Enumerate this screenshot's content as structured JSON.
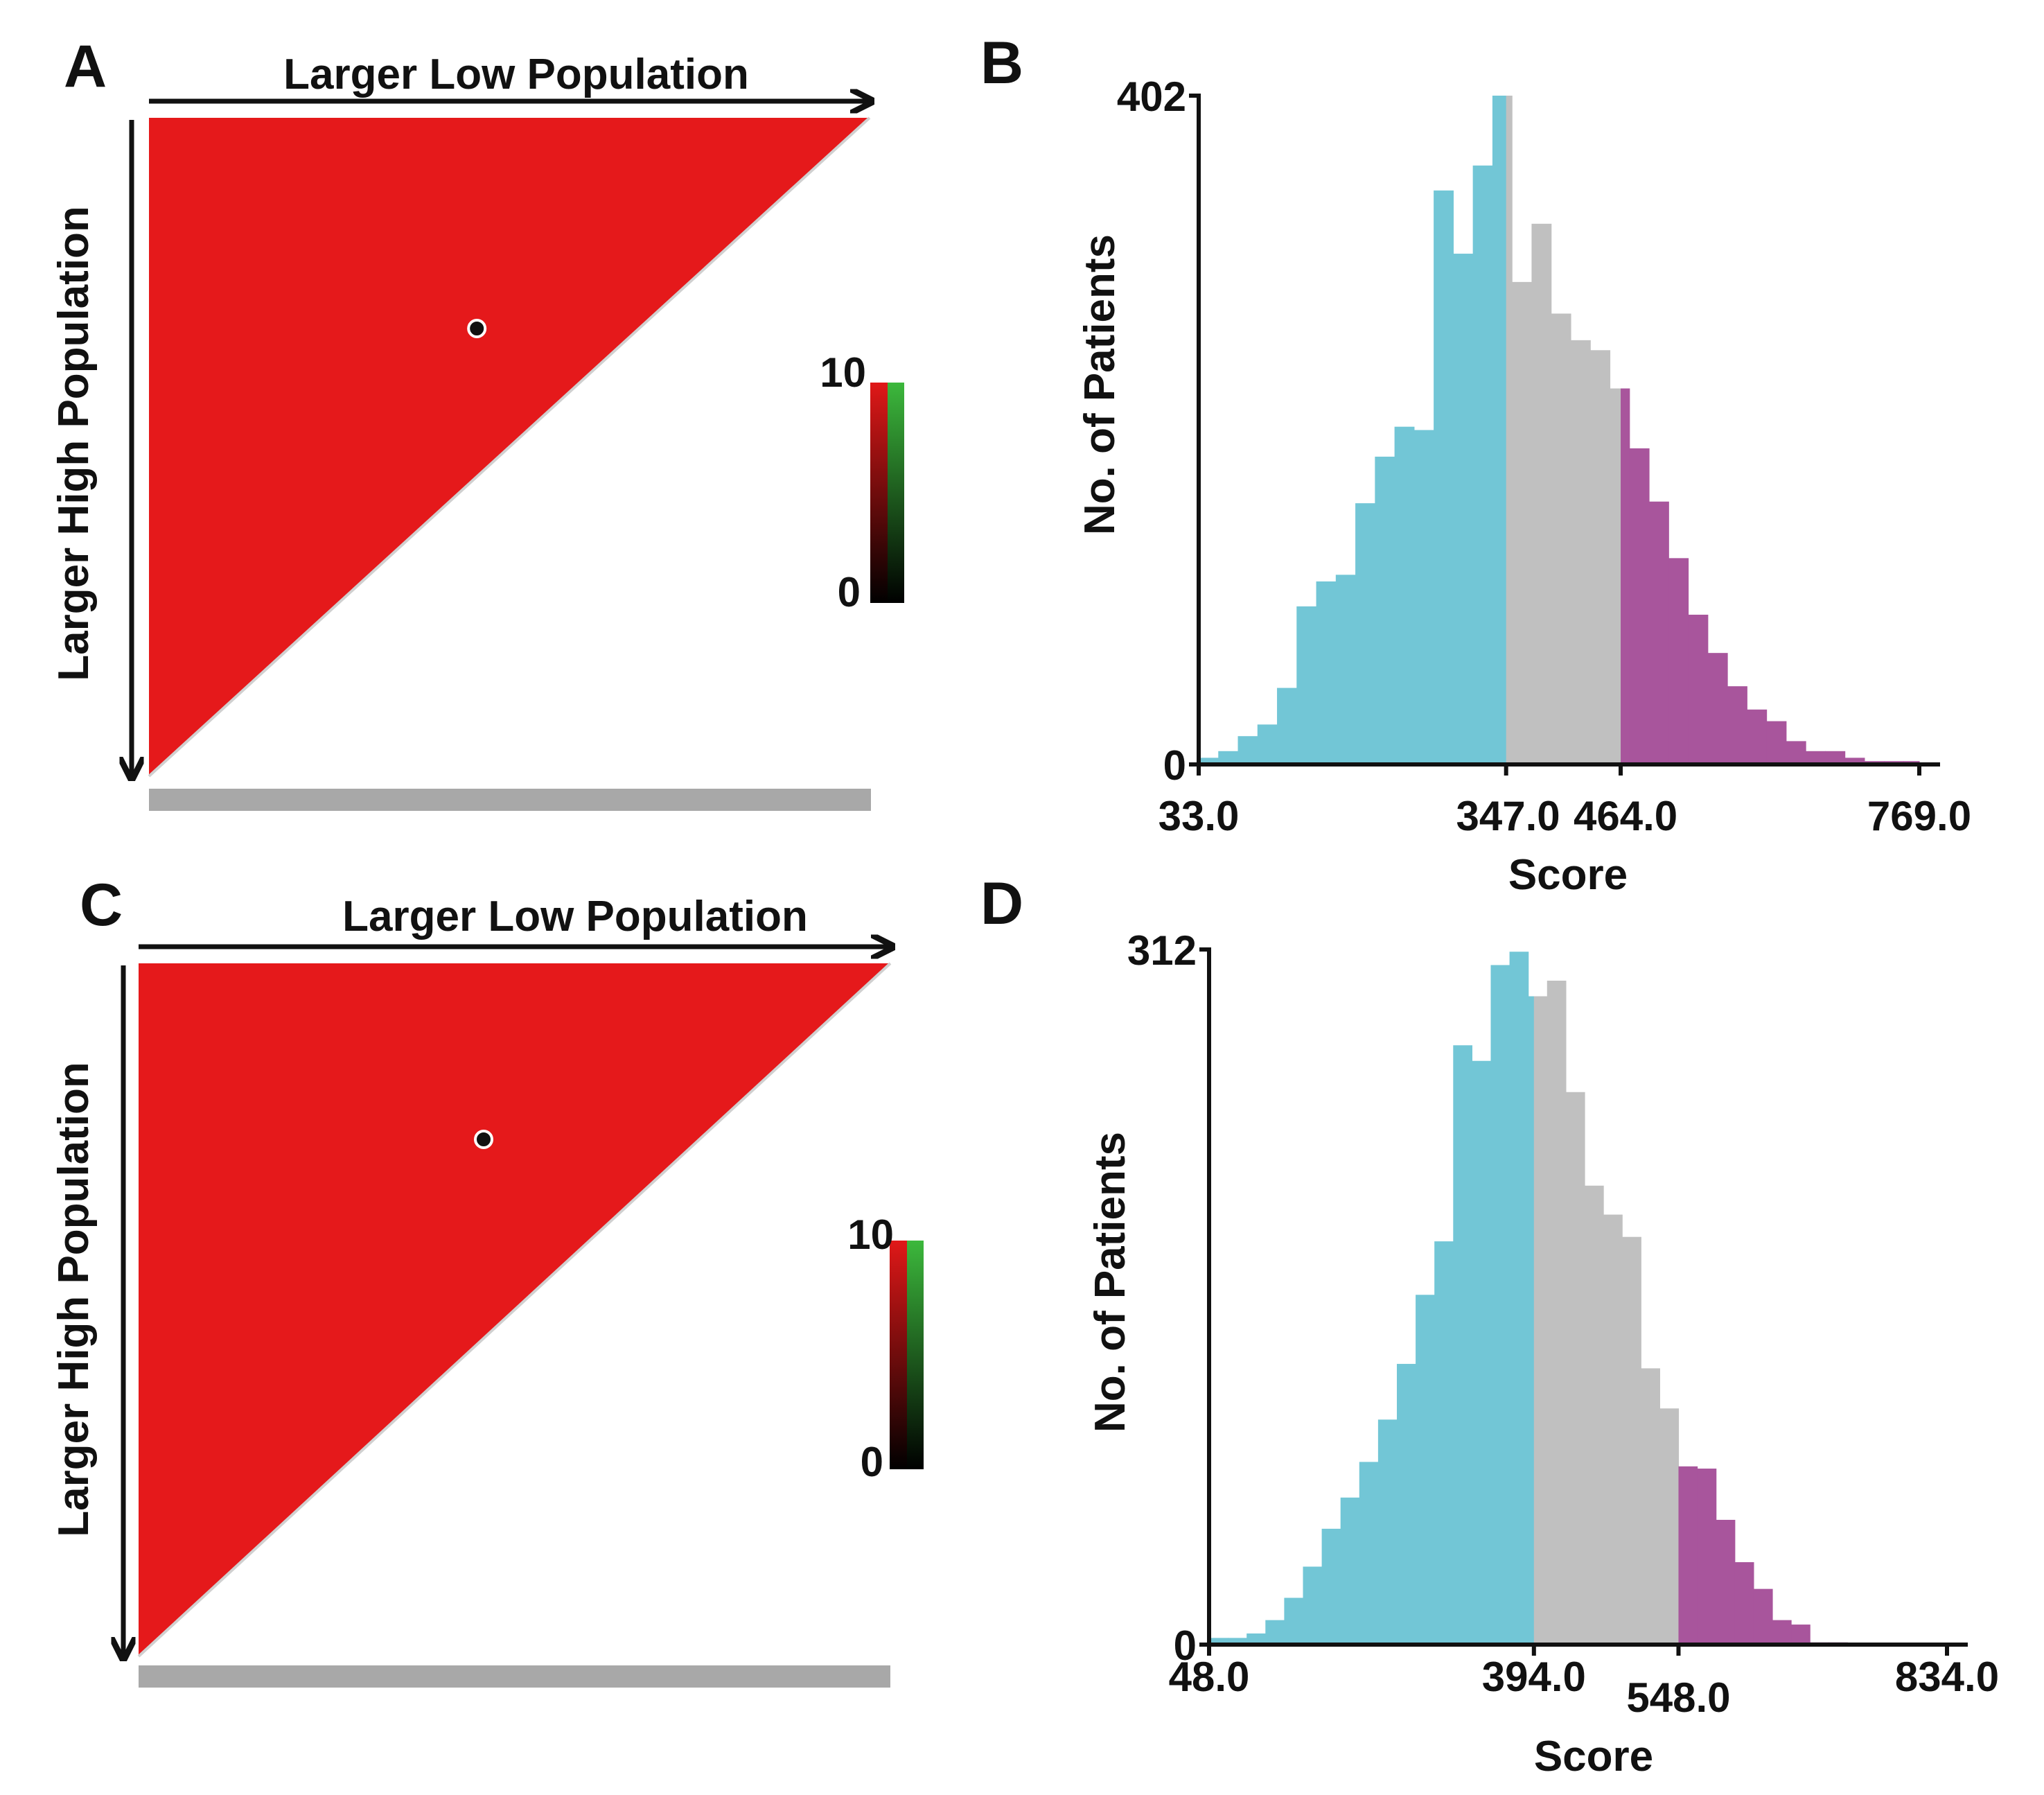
{
  "colors": {
    "low": "#72c6d6",
    "medium": "#c0c0c0",
    "high": "#a8559c",
    "triangle": "#e5191b",
    "cutoff_bar": "#a8a8a8",
    "axis": "#111111"
  },
  "chart_data": [
    {
      "panel": "A",
      "type": "heatmap",
      "title": "",
      "xlabel": "Larger Low Population",
      "ylabel": "Larger High Population",
      "colorbar": {
        "min_label": "0",
        "max_label": "10"
      },
      "optimal_point": [
        0.455,
        0.32
      ]
    },
    {
      "panel": "B",
      "type": "bar",
      "title": "",
      "xlabel": "Score",
      "ylabel": "No. of Patients",
      "xlim": [
        33,
        769
      ],
      "ylim": [
        0,
        402
      ],
      "y_tick_labels": [
        "0",
        "402"
      ],
      "x_tick_values": [
        33,
        347,
        464,
        769
      ],
      "x_tick_labels": [
        "33.0",
        "347.0",
        "464.0",
        "769.0"
      ],
      "cutoffs": [
        347,
        464
      ],
      "bin_width": 20,
      "values": [
        4,
        8,
        17,
        24,
        46,
        95,
        110,
        114,
        157,
        185,
        203,
        201,
        345,
        307,
        360,
        402,
        290,
        325,
        271,
        255,
        249,
        226,
        190,
        158,
        124,
        90,
        67,
        47,
        33,
        26,
        14,
        8,
        8,
        4,
        2,
        2,
        2
      ]
    },
    {
      "panel": "C",
      "type": "heatmap",
      "title": "",
      "xlabel": "Larger Low Population",
      "ylabel": "Larger High Population",
      "colorbar": {
        "min_label": "0",
        "max_label": "10"
      },
      "optimal_point": [
        0.459,
        0.254
      ]
    },
    {
      "panel": "D",
      "type": "bar",
      "title": "",
      "xlabel": "Score",
      "ylabel": "No. of Patients",
      "xlim": [
        48,
        834
      ],
      "ylim": [
        0,
        312
      ],
      "y_tick_labels": [
        "0",
        "312"
      ],
      "x_tick_values": [
        48,
        394,
        548,
        834
      ],
      "x_tick_labels": [
        "48.0",
        "394.0",
        "548.0",
        "834.0"
      ],
      "cutoffs": [
        394,
        548
      ],
      "bin_width": 20,
      "values": [
        3,
        3,
        5,
        11,
        21,
        35,
        52,
        66,
        82,
        101,
        126,
        157,
        181,
        269,
        262,
        305,
        311,
        291,
        298,
        248,
        206,
        193,
        183,
        124,
        106,
        80,
        79,
        56,
        37,
        25,
        11,
        9,
        1,
        1,
        0,
        0,
        0,
        0,
        0,
        0
      ]
    }
  ]
}
